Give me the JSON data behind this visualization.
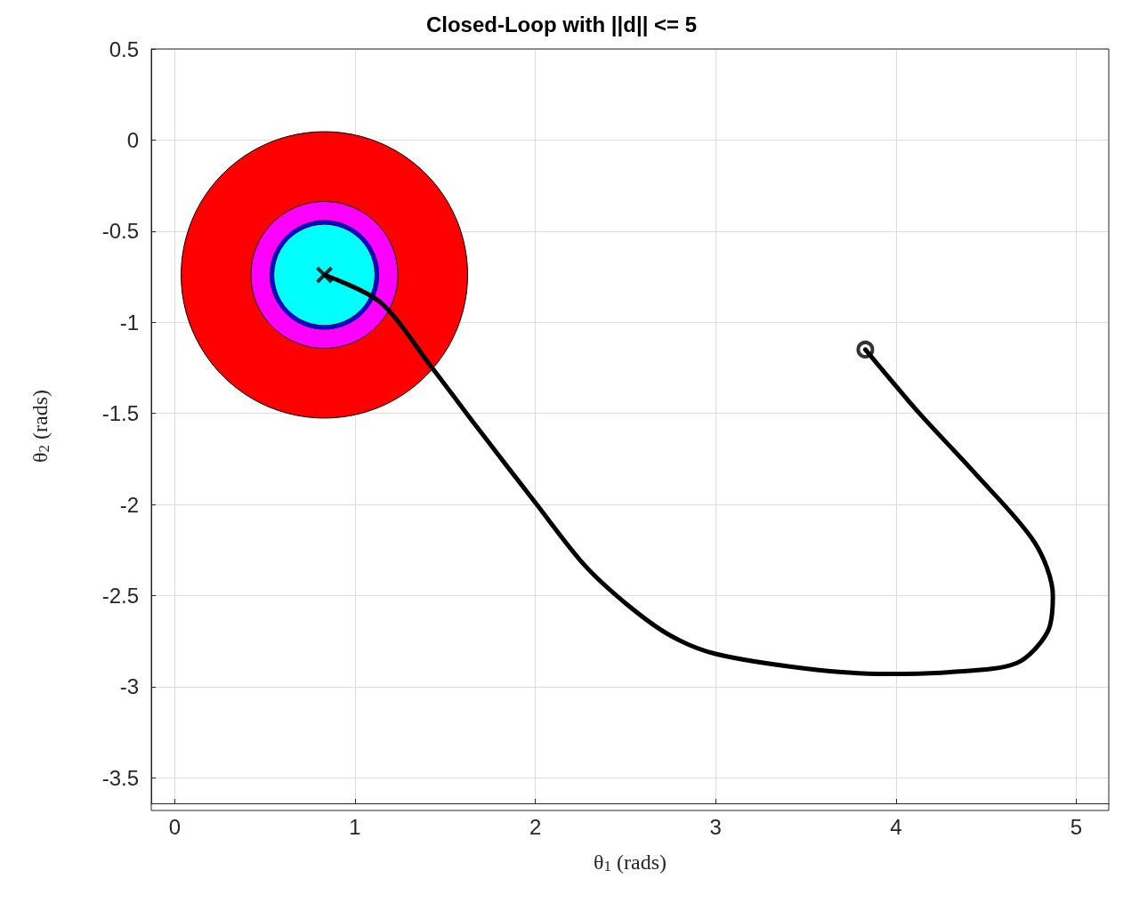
{
  "chart_data": {
    "type": "line",
    "title": "Closed-Loop with ||d|| <= 5",
    "xlabel": "θ$_{1}$ (rads)",
    "ylabel": "θ$_{2}$ (rads)",
    "xlim": [
      -0.13,
      5.18
    ],
    "ylim": [
      -3.64,
      0.5
    ],
    "xticks": [
      0,
      1,
      2,
      3,
      4,
      5
    ],
    "yticks": [
      0.5,
      0,
      -0.5,
      -1,
      -1.5,
      -2,
      -2.5,
      -3,
      -3.5
    ],
    "grid": true,
    "series": [
      {
        "type": "bubble",
        "color": "#ff0000",
        "x": [
          0.83
        ],
        "values": [
          -0.74
        ],
        "sizes": [
          1
        ]
      },
      {
        "type": "bubble",
        "color": "#ff00ff",
        "x": [
          0.83
        ],
        "values": [
          -0.74
        ],
        "sizes": [
          0.263
        ]
      },
      {
        "type": "bubble",
        "color": "#0000ff",
        "x": [
          0.83
        ],
        "values": [
          -0.74
        ],
        "sizes": [
          0.144
        ]
      },
      {
        "type": "bubble",
        "color": "#00ffff",
        "x": [
          0.83
        ],
        "values": [
          -0.74
        ],
        "sizes": [
          0.125
        ]
      },
      {
        "color": "#000000",
        "marker": "none",
        "x": [
          3.83,
          4.13,
          4.43,
          4.77,
          4.87,
          4.84,
          4.67,
          4.3,
          3.94,
          3.5,
          3.0,
          2.75,
          2.51,
          2.27,
          2.0,
          1.68,
          1.42,
          1.14,
          0.83
        ],
        "values": [
          -1.15,
          -1.5,
          -1.82,
          -2.21,
          -2.5,
          -2.7,
          -2.87,
          -2.92,
          -2.93,
          -2.9,
          -2.82,
          -2.72,
          -2.55,
          -2.33,
          -1.99,
          -1.58,
          -1.24,
          -0.89,
          -0.74
        ]
      },
      {
        "type": "scatter",
        "color": "#000000",
        "marker": "circle",
        "x": [
          3.83
        ],
        "values": [
          -1.15
        ]
      },
      {
        "type": "scatter",
        "color": "#000000",
        "marker": "cross",
        "x": [
          0.83
        ],
        "values": [
          -0.74
        ]
      }
    ]
  }
}
